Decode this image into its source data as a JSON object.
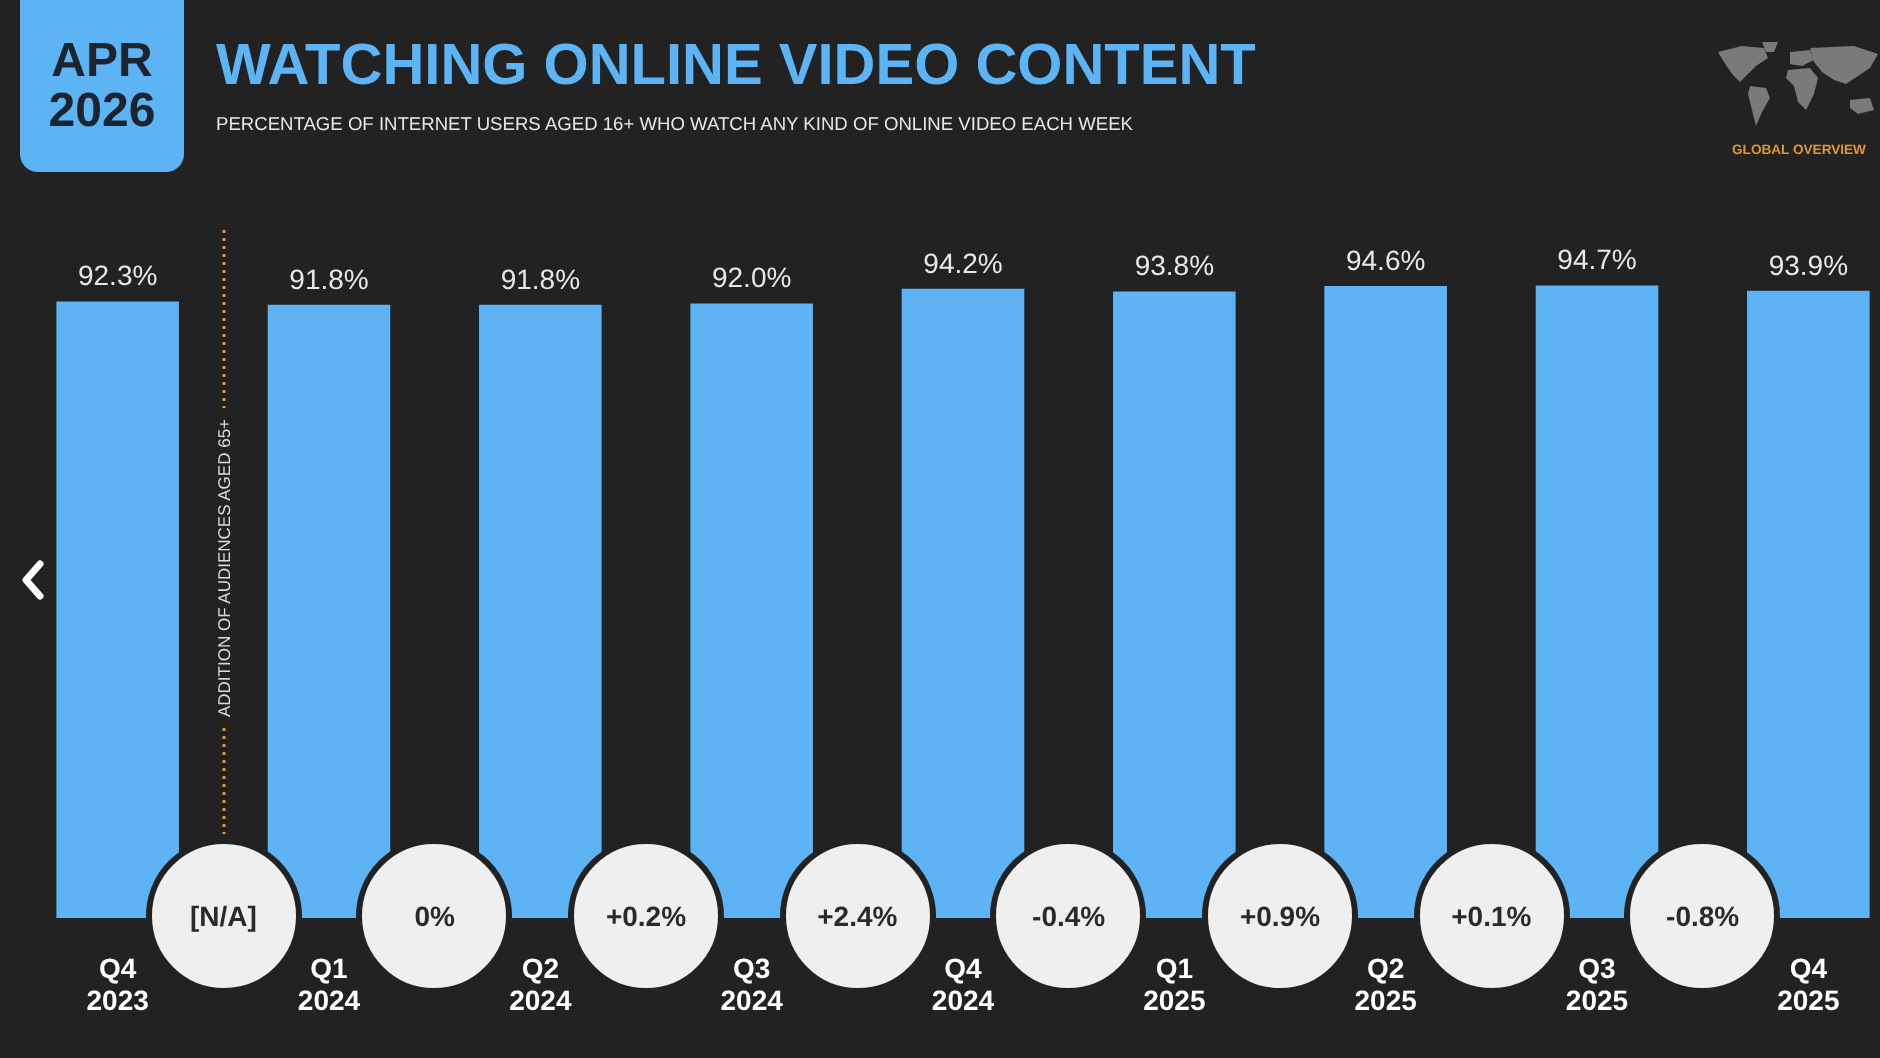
{
  "chart_data": {
    "type": "bar",
    "title": "WATCHING ONLINE VIDEO CONTENT",
    "subtitle": "PERCENTAGE OF INTERNET USERS AGED 16+ WHO WATCH ANY KIND OF ONLINE VIDEO EACH WEEK",
    "categories": [
      "Q4\n2023",
      "Q1\n2024",
      "Q2\n2024",
      "Q3\n2024",
      "Q4\n2024",
      "Q1\n2025",
      "Q2\n2025",
      "Q3\n2025",
      "Q4\n2025"
    ],
    "values": [
      92.3,
      91.8,
      91.8,
      92.0,
      94.2,
      93.8,
      94.6,
      94.7,
      93.9
    ],
    "value_labels": [
      "92.3%",
      "91.8%",
      "91.8%",
      "92.0%",
      "94.2%",
      "93.8%",
      "94.6%",
      "94.7%",
      "93.9%"
    ],
    "color": "#5eb3f5",
    "tick_labels": "x",
    "annotations": [
      "APR\n2026",
      "GLOBAL OVERVIEW",
      "ADDITION OF AUDIENCES AGED 65+",
      "[N/A]",
      "0%",
      "+0.2%",
      "+2.4%",
      "-0.4%",
      "+0.9%",
      "+0.1%",
      "-0.8%"
    ]
  }
}
